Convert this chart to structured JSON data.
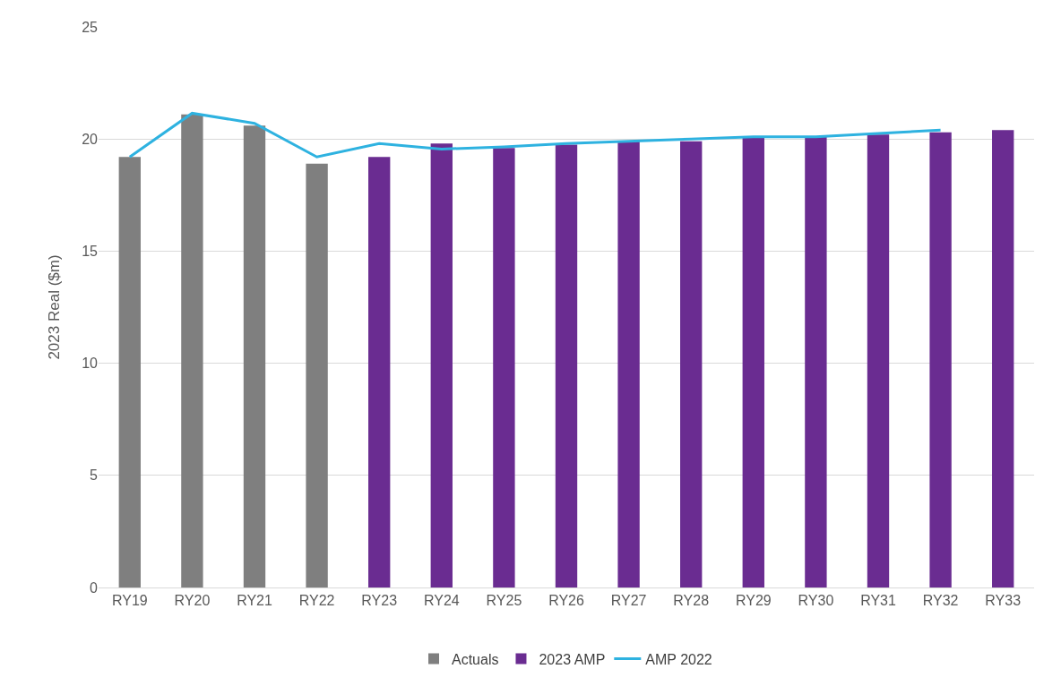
{
  "chart_data": {
    "type": "bar",
    "ylabel": "2023 Real ($m)",
    "categories": [
      "RY19",
      "RY20",
      "RY21",
      "RY22",
      "RY23",
      "RY24",
      "RY25",
      "RY26",
      "RY27",
      "RY28",
      "RY29",
      "RY30",
      "RY31",
      "RY32",
      "RY33"
    ],
    "series": [
      {
        "name": "Actuals",
        "color": "#7f7f7f",
        "values": [
          19.2,
          21.1,
          20.6,
          18.9,
          null,
          null,
          null,
          null,
          null,
          null,
          null,
          null,
          null,
          null,
          null
        ]
      },
      {
        "name": "2023 AMP",
        "color": "#6a2c91",
        "values": [
          null,
          null,
          null,
          null,
          19.2,
          19.8,
          19.6,
          19.75,
          19.9,
          19.9,
          20.1,
          20.1,
          20.2,
          20.3,
          20.4
        ]
      },
      {
        "name": "AMP 2022",
        "type": "line",
        "color": "#2eb2e0",
        "values": [
          19.2,
          21.15,
          20.7,
          19.2,
          19.8,
          19.55,
          19.65,
          19.8,
          19.9,
          20.0,
          20.1,
          20.1,
          20.25,
          20.4,
          null
        ]
      }
    ],
    "ylim": [
      0,
      25
    ],
    "yticks": [
      0,
      5,
      10,
      15,
      20,
      25
    ],
    "grid": "y",
    "legend": "bottom",
    "marker": "none",
    "line_style": "solid"
  }
}
